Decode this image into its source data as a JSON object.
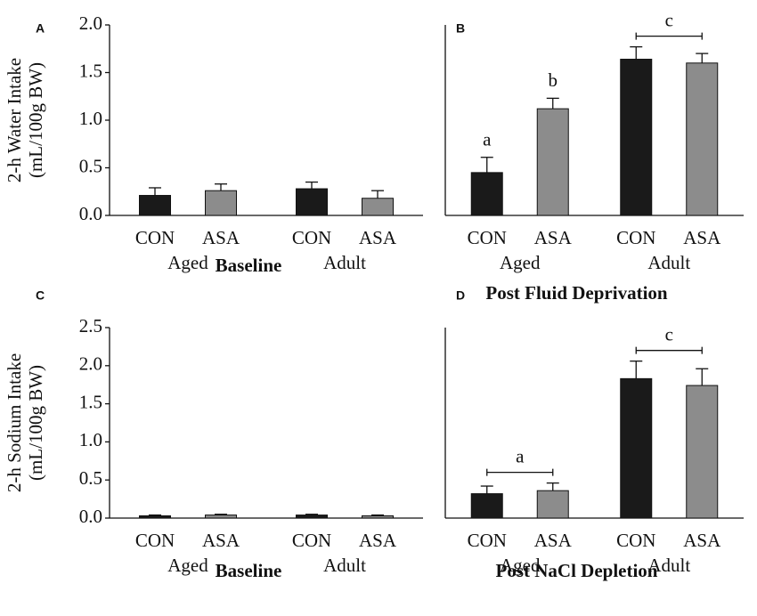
{
  "chart_data": [
    {
      "type": "bar",
      "panel": "A",
      "title": "Baseline",
      "ylabel": [
        "2-h Water Intake",
        "(mL/100g BW)"
      ],
      "categories": [
        "Aged",
        "Adult"
      ],
      "series": [
        {
          "name": "CON",
          "color": "#1a1a1a",
          "values": [
            0.21,
            0.28
          ],
          "errors": [
            0.08,
            0.07
          ]
        },
        {
          "name": "ASA",
          "color": "#8c8c8c",
          "values": [
            0.26,
            0.18
          ],
          "errors": [
            0.07,
            0.08
          ]
        }
      ],
      "ylim": [
        0,
        2.0
      ],
      "yticks": [
        {
          "value": 0,
          "label": "0.0"
        },
        {
          "value": 0.5,
          "label": "0.5"
        },
        {
          "value": 1.0,
          "label": "1.0"
        },
        {
          "value": 1.5,
          "label": "1.5"
        },
        {
          "value": 2.0,
          "label": "2.0"
        }
      ]
    },
    {
      "type": "bar",
      "panel": "B",
      "title": "Post Fluid Deprivation",
      "categories": [
        "Aged",
        "Adult"
      ],
      "series": [
        {
          "name": "CON",
          "color": "#1a1a1a",
          "values": [
            0.45,
            1.64
          ],
          "errors": [
            0.16,
            0.13
          ],
          "letters": [
            "a",
            null
          ]
        },
        {
          "name": "ASA",
          "color": "#8c8c8c",
          "values": [
            1.12,
            1.6
          ],
          "errors": [
            0.11,
            0.1
          ],
          "letters": [
            "b",
            null
          ]
        }
      ],
      "group_letters": [
        null,
        "c"
      ],
      "ylim": [
        0,
        2.0
      ]
    },
    {
      "type": "bar",
      "panel": "C",
      "title": "Baseline",
      "ylabel": [
        "2-h Sodium Intake",
        "(mL/100g BW)"
      ],
      "categories": [
        "Aged",
        "Adult"
      ],
      "series": [
        {
          "name": "CON",
          "color": "#1a1a1a",
          "values": [
            0.03,
            0.04
          ],
          "errors": [
            0.01,
            0.01
          ]
        },
        {
          "name": "ASA",
          "color": "#8c8c8c",
          "values": [
            0.04,
            0.03
          ],
          "errors": [
            0.01,
            0.01
          ]
        }
      ],
      "ylim": [
        0,
        2.5
      ],
      "yticks": [
        {
          "value": 0,
          "label": "0.0"
        },
        {
          "value": 0.5,
          "label": "0.5"
        },
        {
          "value": 1.0,
          "label": "1.0"
        },
        {
          "value": 1.5,
          "label": "1.5"
        },
        {
          "value": 2.0,
          "label": "2.0"
        },
        {
          "value": 2.5,
          "label": "2.5"
        }
      ]
    },
    {
      "type": "bar",
      "panel": "D",
      "title": "Post NaCl Depletion",
      "categories": [
        "Aged",
        "Adult"
      ],
      "series": [
        {
          "name": "CON",
          "color": "#1a1a1a",
          "values": [
            0.32,
            1.83
          ],
          "errors": [
            0.1,
            0.23
          ]
        },
        {
          "name": "ASA",
          "color": "#8c8c8c",
          "values": [
            0.36,
            1.74
          ],
          "errors": [
            0.1,
            0.22
          ]
        }
      ],
      "group_letters": [
        "a",
        "c"
      ],
      "ylim": [
        0,
        2.5
      ]
    }
  ]
}
